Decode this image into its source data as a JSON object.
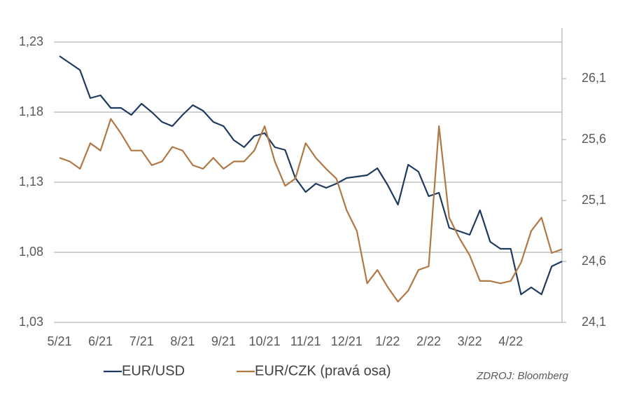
{
  "chart_data": {
    "type": "line",
    "categories": [
      "5/21",
      null,
      null,
      null,
      "6/21",
      null,
      null,
      null,
      "7/21",
      null,
      null,
      null,
      "8/21",
      null,
      null,
      null,
      "9/21",
      null,
      null,
      null,
      "10/21",
      null,
      null,
      null,
      "11/21",
      null,
      null,
      null,
      "12/21",
      null,
      null,
      null,
      "1/22",
      null,
      null,
      null,
      "2/22",
      null,
      null,
      null,
      "3/22",
      null,
      null,
      null,
      "4/22",
      null,
      null,
      null,
      null,
      null
    ],
    "series": [
      {
        "name": "EUR/USD",
        "color": "#1f3a5f",
        "values": [
          1.22,
          1.215,
          1.21,
          1.19,
          1.192,
          1.183,
          1.183,
          1.178,
          1.186,
          1.18,
          1.173,
          1.17,
          1.178,
          1.185,
          1.181,
          1.173,
          1.17,
          1.16,
          1.155,
          1.163,
          1.165,
          1.155,
          1.153,
          1.133,
          1.123,
          1.129,
          1.126,
          1.129,
          1.133,
          1.134,
          1.135,
          1.14,
          1.128,
          1.114,
          1.1425,
          1.1375,
          1.12,
          1.1225,
          1.0975,
          1.095,
          1.0925,
          1.11,
          1.0875,
          1.0825,
          1.0825,
          1.05,
          1.055,
          1.05,
          1.07,
          1.0735
        ]
      },
      {
        "name": "EUR/CZK (pravá osa)",
        "color": "#b07845",
        "axis": "y2",
        "values": [
          25.45,
          25.42,
          25.36,
          25.57,
          25.51,
          25.77,
          25.65,
          25.51,
          25.51,
          25.39,
          25.42,
          25.54,
          25.51,
          25.39,
          25.36,
          25.45,
          25.36,
          25.42,
          25.42,
          25.51,
          25.71,
          25.42,
          25.22,
          25.28,
          25.57,
          25.45,
          25.36,
          25.28,
          25.02,
          24.85,
          24.42,
          24.53,
          24.39,
          24.27,
          24.36,
          24.53,
          24.56,
          25.71,
          24.96,
          24.79,
          24.65,
          24.44,
          24.44,
          24.42,
          24.44,
          24.59,
          24.85,
          24.96,
          24.67,
          24.7
        ]
      }
    ],
    "ylim": [
      1.03,
      1.23
    ],
    "yticks": [
      {
        "value": 1.03,
        "label": "1,03"
      },
      {
        "value": 1.08,
        "label": "1,08"
      },
      {
        "value": 1.13,
        "label": "1,13"
      },
      {
        "value": 1.18,
        "label": "1,18"
      },
      {
        "value": 1.23,
        "label": "1,23"
      }
    ],
    "y2lim": [
      24.1,
      26.4
    ],
    "y2ticks": [
      {
        "value": 24.1,
        "label": "24,1"
      },
      {
        "value": 24.6,
        "label": "24,6"
      },
      {
        "value": 25.1,
        "label": "25,1"
      },
      {
        "value": 25.6,
        "label": "25,6"
      },
      {
        "value": 26.1,
        "label": "26,1"
      }
    ],
    "grid": true,
    "source": "ZDROJ: Bloomberg"
  }
}
